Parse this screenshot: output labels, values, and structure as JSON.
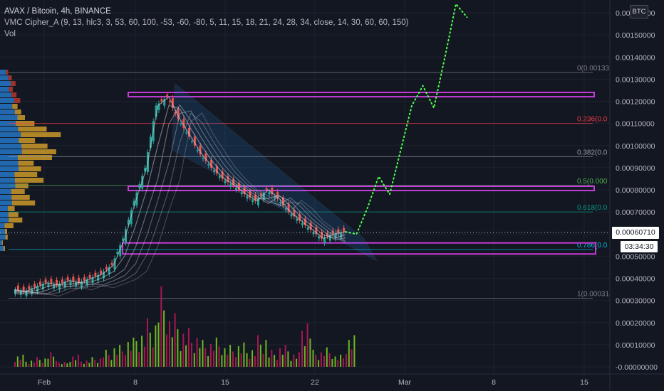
{
  "legend": {
    "symbol": "AVAX / Bitcoin, 4h, BINANCE",
    "indicator": "VMC Cipher_A (9, 13, hlc3, 3, 53, 60, 100, -53, -60, -80, 5, 11, 15, 18, 21, 24, 28, 34, close, 14, 30, 60, 60, 150)",
    "volume": "Vol"
  },
  "currency_badge": "BTC",
  "last_price_tag": "0.00060710",
  "countdown": "03:34:30",
  "colors": {
    "background": "#131722",
    "grid": "#1e222d",
    "up": "#26a69a",
    "down": "#ef5350",
    "channel": "#2196f3",
    "zone": "#c43bd8",
    "projection": "#4cff4c",
    "profile_blue": "#2677c8",
    "profile_gold": "#d8a12a"
  },
  "chart_data": {
    "type": "candlestick",
    "x_ticks": [
      "Feb",
      "8",
      "15",
      "22",
      "Mar",
      "8",
      "15"
    ],
    "y_ticks": [
      "0.00160000",
      "0.00150000",
      "0.00140000",
      "0.00130000",
      "0.00120000",
      "0.00110000",
      "0.00100000",
      "0.00090000",
      "0.00080000",
      "0.00070000",
      "0.00060000",
      "0.00050000",
      "0.00040000",
      "0.00030000",
      "0.00020000",
      "0.00010000",
      "-0.00000000"
    ],
    "price_range": [
      0.00026,
      0.00166
    ],
    "volume_axis_range": [
      0,
      0.00033
    ],
    "last_price": 0.0006071,
    "fib_levels": [
      {
        "ratio": "0",
        "label": "0(0.00133",
        "value": 0.00133,
        "color": "#787b86"
      },
      {
        "ratio": "0.236",
        "label": "0.236(0.0",
        "value": 0.0011,
        "color": "#f23645"
      },
      {
        "ratio": "0.382",
        "label": "0.382(0.0",
        "value": 0.00095,
        "color": "#9598a1"
      },
      {
        "ratio": "0.5",
        "label": "0.5(0.000",
        "value": 0.00082,
        "color": "#4caf50"
      },
      {
        "ratio": "0.618",
        "label": "0.618(0.0",
        "value": 0.0007,
        "color": "#089981"
      },
      {
        "ratio": "0.786",
        "label": "0.786(0.0",
        "value": 0.00053,
        "color": "#00bcd4"
      },
      {
        "ratio": "1",
        "label": "1(0.00031",
        "value": 0.00031,
        "color": "#787b86"
      }
    ],
    "zones": [
      {
        "top": 0.00124,
        "bottom": 0.001225
      },
      {
        "top": 0.000816,
        "bottom": 0.000803
      },
      {
        "top": 0.00056,
        "bottom": 0.00051
      }
    ],
    "price_path": [
      [
        0,
        0.00035
      ],
      [
        1,
        0.00034
      ],
      [
        2,
        0.00036
      ],
      [
        3,
        0.00038
      ],
      [
        4,
        0.00037
      ],
      [
        5,
        0.00039
      ],
      [
        6,
        0.00038
      ],
      [
        7,
        0.0004
      ],
      [
        8,
        0.00042
      ],
      [
        9,
        0.00046
      ],
      [
        10,
        0.00058
      ],
      [
        11,
        0.00075
      ],
      [
        12,
        0.0009
      ],
      [
        13,
        0.00118
      ],
      [
        14,
        0.00122
      ],
      [
        15,
        0.00112
      ],
      [
        16,
        0.00104
      ],
      [
        17,
        0.00096
      ],
      [
        18,
        0.0009
      ],
      [
        19,
        0.00085
      ],
      [
        20,
        0.00082
      ],
      [
        21,
        0.00078
      ],
      [
        22,
        0.00075
      ],
      [
        23,
        0.0008
      ],
      [
        24,
        0.00076
      ],
      [
        25,
        0.0007
      ],
      [
        26,
        0.00066
      ],
      [
        27,
        0.00062
      ],
      [
        28,
        0.00058
      ],
      [
        29,
        0.0006
      ],
      [
        30,
        0.00061
      ]
    ],
    "projection_path": [
      [
        30,
        0.00061
      ],
      [
        31,
        0.0006
      ],
      [
        32,
        0.00072
      ],
      [
        33,
        0.00086
      ],
      [
        34,
        0.00078
      ],
      [
        35,
        0.00098
      ],
      [
        36,
        0.00118
      ],
      [
        37,
        0.00127
      ],
      [
        38,
        0.00117
      ],
      [
        39,
        0.0014
      ],
      [
        40,
        0.00164
      ],
      [
        41,
        0.00158
      ]
    ],
    "volume_values": [
      5e-05,
      3e-05,
      4e-05,
      6e-05,
      2e-05,
      5e-05,
      3e-05,
      4e-05,
      7e-05,
      9e-05,
      0.00012,
      0.00015,
      0.0002,
      0.00033,
      0.00022,
      0.00016,
      0.00014,
      0.00011,
      0.00012,
      9e-05,
      0.0001,
      8e-05,
      0.00013,
      7e-05,
      9e-05,
      6e-05,
      0.00021,
      7e-05,
      8e-05,
      5e-05,
      0.00013
    ]
  }
}
